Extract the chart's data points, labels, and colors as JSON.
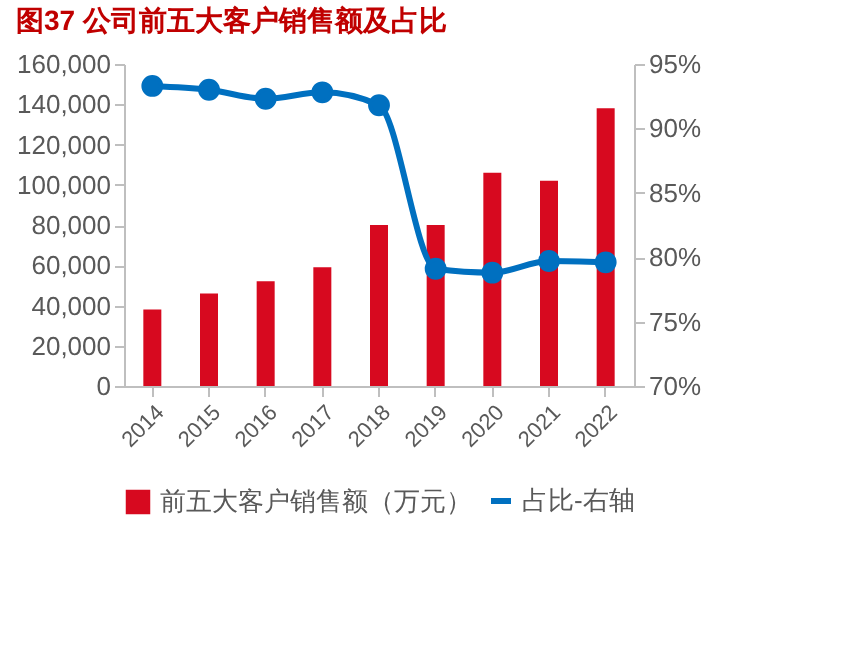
{
  "chart_data": {
    "type": "bar",
    "title": "图37  公司前五大客户销售额及占比",
    "categories": [
      "2014",
      "2015",
      "2016",
      "2017",
      "2018",
      "2019",
      "2020",
      "2021",
      "2022"
    ],
    "series": [
      {
        "name": "前五大客户销售额（万元）",
        "color": "#d7091f",
        "values": [
          38000,
          46000,
          52000,
          59000,
          80000,
          80000,
          106000,
          102000,
          138000
        ]
      },
      {
        "name": "占比-右轴",
        "type": "line",
        "axis": "y2",
        "color": "#0070c0",
        "values": [
          93.3,
          93.0,
          92.3,
          92.8,
          91.8,
          79.1,
          78.8,
          79.7,
          79.6
        ]
      }
    ],
    "ylim": [
      0,
      160000
    ],
    "yticks": [
      0,
      {
        "value": 20000,
        "label": "20,000"
      },
      {
        "value": 40000,
        "label": "40,000"
      },
      {
        "value": 60000,
        "label": "60,000"
      },
      {
        "value": 80000,
        "label": "80,000"
      },
      {
        "value": 100000,
        "label": "100,000"
      },
      {
        "value": 120000,
        "label": "120,000"
      },
      {
        "value": 140000,
        "label": "140,000"
      },
      {
        "value": 160000,
        "label": "160,000"
      }
    ],
    "y2lim": [
      70,
      95
    ],
    "y2ticks": [
      {
        "value": 70,
        "label": "70%"
      },
      {
        "value": 75,
        "label": "75%"
      },
      {
        "value": 80,
        "label": "80%"
      },
      {
        "value": 85,
        "label": "85%"
      },
      {
        "value": 90,
        "label": "90%"
      },
      {
        "value": 95,
        "label": "95%"
      }
    ],
    "legend": "bottom",
    "marker": "circle",
    "grid": false
  }
}
